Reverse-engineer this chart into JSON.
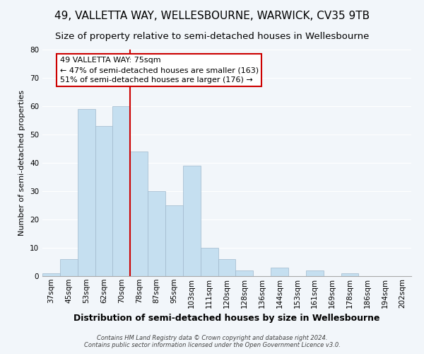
{
  "title": "49, VALLETTA WAY, WELLESBOURNE, WARWICK, CV35 9TB",
  "subtitle": "Size of property relative to semi-detached houses in Wellesbourne",
  "xlabel": "Distribution of semi-detached houses by size in Wellesbourne",
  "ylabel": "Number of semi-detached properties",
  "footer_line1": "Contains HM Land Registry data © Crown copyright and database right 2024.",
  "footer_line2": "Contains public sector information licensed under the Open Government Licence v3.0.",
  "bar_labels": [
    "37sqm",
    "45sqm",
    "53sqm",
    "62sqm",
    "70sqm",
    "78sqm",
    "87sqm",
    "95sqm",
    "103sqm",
    "111sqm",
    "120sqm",
    "128sqm",
    "136sqm",
    "144sqm",
    "153sqm",
    "161sqm",
    "169sqm",
    "178sqm",
    "186sqm",
    "194sqm",
    "202sqm"
  ],
  "bar_values": [
    1,
    6,
    59,
    53,
    60,
    44,
    30,
    25,
    39,
    10,
    6,
    2,
    0,
    3,
    0,
    2,
    0,
    1,
    0,
    0,
    0
  ],
  "bar_color": "#c5dff0",
  "bar_edge_color": "#a0b8cc",
  "reference_line_x": 4.5,
  "pct_smaller": "47% of semi-detached houses are smaller (163)",
  "pct_larger": "51% of semi-detached houses are larger (176)",
  "annotation_box_color": "#ffffff",
  "annotation_box_edge": "#cc0000",
  "reference_line_color": "#cc0000",
  "ylim": [
    0,
    80
  ],
  "yticks": [
    0,
    10,
    20,
    30,
    40,
    50,
    60,
    70,
    80
  ],
  "background_color": "#f2f6fa",
  "title_fontsize": 11,
  "subtitle_fontsize": 9.5,
  "xlabel_fontsize": 9,
  "ylabel_fontsize": 8,
  "tick_fontsize": 7.5,
  "annotation_fontsize": 8,
  "footer_fontsize": 6
}
